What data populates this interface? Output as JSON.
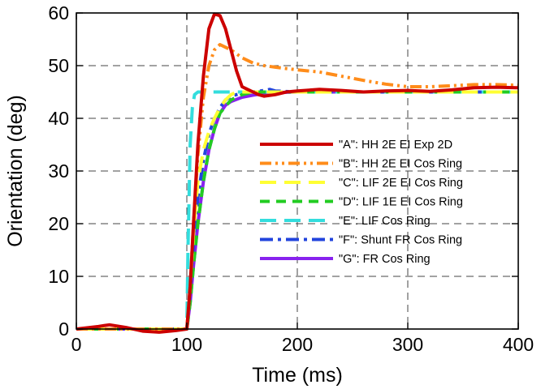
{
  "chart_data": {
    "type": "line",
    "xlabel": "Time (ms)",
    "ylabel": "Orientation (deg)",
    "xlim": [
      0,
      400
    ],
    "ylim": [
      0,
      60
    ],
    "xticks": [
      0,
      100,
      200,
      300,
      400
    ],
    "yticks": [
      0,
      10,
      20,
      30,
      40,
      50,
      60
    ],
    "grid": true,
    "legend_position": "center-right",
    "series": [
      {
        "name": "\"A\": HH 2E EI Exp 2D",
        "color": "#cc0000",
        "dash": "solid",
        "x": [
          0,
          20,
          30,
          45,
          60,
          75,
          90,
          100,
          103,
          106,
          110,
          115,
          120,
          125,
          130,
          135,
          140,
          145,
          150,
          155,
          160,
          165,
          170,
          180,
          190,
          200,
          220,
          240,
          260,
          280,
          300,
          320,
          340,
          360,
          380,
          400
        ],
        "y": [
          0,
          0.5,
          0.8,
          0.3,
          -0.4,
          -0.6,
          -0.3,
          0,
          8,
          20,
          35,
          48,
          57,
          59.8,
          59.5,
          57,
          53,
          49,
          46,
          45.5,
          45,
          44.5,
          44.2,
          44.5,
          45,
          45.2,
          45.5,
          45.3,
          45,
          45.2,
          45.3,
          45.1,
          45.4,
          45.8,
          45.9,
          45.8
        ]
      },
      {
        "name": "\"B\": HH 2E EI Cos Ring",
        "color": "#ff8c1a",
        "dash": "dashdotdot",
        "x": [
          0,
          100,
          103,
          106,
          110,
          115,
          120,
          125,
          130,
          135,
          140,
          150,
          160,
          170,
          180,
          200,
          220,
          240,
          260,
          280,
          300,
          320,
          340,
          360,
          380,
          400
        ],
        "y": [
          0,
          0,
          8,
          20,
          33,
          44,
          50,
          53,
          54,
          53.5,
          53,
          51.5,
          50.5,
          50,
          49.7,
          49.2,
          48.8,
          48,
          47.2,
          46.5,
          46,
          46,
          46.2,
          46.4,
          46.4,
          46.3
        ]
      },
      {
        "name": "\"C\": LIF 2E EI Cos Ring",
        "color": "#ffff33",
        "dash": "longdash",
        "x": [
          0,
          100,
          103,
          106,
          110,
          115,
          120,
          125,
          130,
          135,
          140,
          145,
          150,
          160,
          200,
          400
        ],
        "y": [
          0,
          0,
          8,
          18,
          28,
          34,
          37.5,
          40,
          42,
          43.5,
          44.5,
          45,
          45,
          45,
          45,
          45
        ]
      },
      {
        "name": "\"D\": LIF 1E EI Cos Ring",
        "color": "#22cc22",
        "dash": "dashed",
        "x": [
          0,
          100,
          103,
          106,
          110,
          115,
          120,
          125,
          130,
          140,
          150,
          160,
          200,
          400
        ],
        "y": [
          0,
          0,
          5,
          12,
          20,
          28,
          34,
          38,
          41,
          43.5,
          44.5,
          45,
          45,
          45
        ]
      },
      {
        "name": "\"E\": LIF Cos Ring",
        "color": "#33dddd",
        "dash": "longdash",
        "x": [
          0,
          100,
          101,
          103,
          105,
          107,
          110,
          120,
          140,
          200,
          400
        ],
        "y": [
          0,
          0,
          15,
          35,
          42,
          44.5,
          45,
          45,
          45,
          45,
          45
        ]
      },
      {
        "name": "\"F\": Shunt FR Cos Ring",
        "color": "#2244dd",
        "dash": "dashdot",
        "x": [
          0,
          100,
          103,
          106,
          110,
          115,
          120,
          125,
          130,
          135,
          140,
          150,
          160,
          170,
          175,
          180,
          200,
          400
        ],
        "y": [
          0,
          0,
          7,
          16,
          25,
          32,
          37,
          40,
          42,
          43.5,
          44.2,
          44.8,
          45,
          45.3,
          45.5,
          45.2,
          45,
          45
        ]
      },
      {
        "name": "\"G\": FR Cos Ring",
        "color": "#8822ee",
        "dash": "solid",
        "x": [
          0,
          100,
          103,
          106,
          110,
          115,
          120,
          125,
          130,
          135,
          140,
          150,
          160,
          170,
          180,
          200,
          250,
          300,
          350,
          400
        ],
        "y": [
          0,
          0,
          5,
          12,
          20,
          28,
          34,
          38,
          41,
          42.5,
          43.2,
          44,
          44.4,
          44.7,
          44.9,
          45,
          45,
          45,
          45,
          45
        ]
      }
    ]
  }
}
